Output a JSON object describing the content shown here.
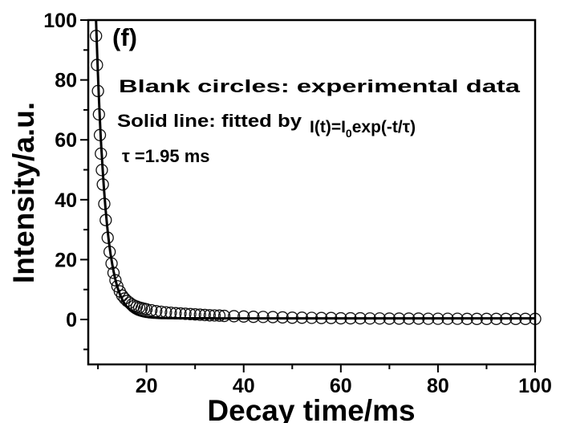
{
  "chart_data": {
    "type": "scatter",
    "panel_label": "(f)",
    "xlabel": "Decay time/ms",
    "ylabel": "Intensity/a.u.",
    "xlim": [
      8,
      100
    ],
    "ylim": [
      -15,
      100
    ],
    "xticks": [
      20,
      40,
      60,
      80,
      100
    ],
    "yticks": [
      0,
      20,
      40,
      60,
      80,
      100
    ],
    "grid": false,
    "annotations": {
      "line1": "Blank circles: experimental data",
      "line2": "Solid line: fitted by",
      "formula_main": "I(t)=I",
      "formula_sub": "0",
      "formula_rest": "exp(-t/τ)",
      "tau": "τ =1.95 ms"
    },
    "series": [
      {
        "name": "experimental data",
        "marker": "open-circle",
        "x": [
          9.6,
          9.8,
          10.0,
          10.2,
          10.4,
          10.6,
          10.8,
          11.0,
          11.3,
          11.6,
          12.0,
          12.4,
          12.8,
          13.2,
          13.6,
          14.0,
          14.5,
          15.0,
          15.5,
          16.0,
          16.5,
          17,
          17.5,
          18,
          18.5,
          19,
          19.5,
          20,
          21,
          22,
          23,
          24,
          25,
          26,
          27,
          28,
          29,
          30,
          31,
          32,
          33,
          34,
          35,
          36,
          38,
          40,
          42,
          44,
          46,
          48,
          50,
          52,
          54,
          56,
          58,
          60,
          62,
          64,
          66,
          68,
          70,
          72,
          74,
          76,
          78,
          80,
          82,
          84,
          86,
          88,
          90,
          92,
          94,
          96,
          98,
          100
        ],
        "y": [
          94.7,
          85.0,
          76.3,
          68.5,
          61.6,
          55.4,
          49.9,
          45.1,
          38.6,
          33.2,
          27.3,
          22.6,
          18.7,
          15.6,
          13.1,
          11.1,
          9.4,
          8.0,
          7.0,
          6.2,
          5.6,
          5.0,
          4.6,
          4.3,
          4.0,
          3.8,
          3.6,
          3.4,
          3.1,
          2.8,
          2.6,
          2.4,
          2.25,
          2.1,
          2.0,
          1.9,
          1.8,
          1.7,
          1.6,
          1.5,
          1.4,
          1.35,
          1.3,
          1.2,
          1.1,
          1.0,
          0.9,
          0.85,
          0.8,
          0.7,
          0.6,
          0.6,
          0.55,
          0.5,
          0.5,
          0.4,
          0.4,
          0.4,
          0.35,
          0.35,
          0.3,
          0.3,
          0.3,
          0.3,
          0.25,
          0.25,
          0.25,
          0.25,
          0.2,
          0.2,
          0.2,
          0.2,
          0.2,
          0.2,
          0.2,
          0.2
        ]
      },
      {
        "name": "fit",
        "style": "solid-line",
        "model": "I(t)=I0*exp(-(t-t0)/tau)+offset",
        "I0": 100,
        "t0": 9.6,
        "tau": 1.95,
        "offset": 0.4
      }
    ]
  }
}
